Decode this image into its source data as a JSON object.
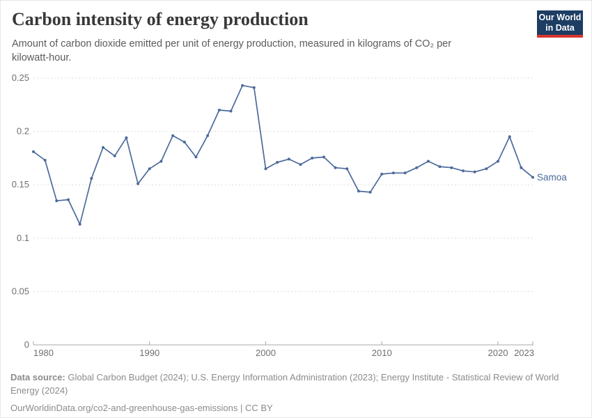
{
  "header": {
    "title": "Carbon intensity of energy production",
    "subtitle": "Amount of carbon dioxide emitted per unit of energy production, measured in kilograms of CO₂ per kilowatt-hour."
  },
  "logo": {
    "line1": "Our World",
    "line2": "in Data"
  },
  "chart_data": {
    "type": "line",
    "title": "Carbon intensity of energy production",
    "xlabel": "",
    "ylabel": "kilograms of CO₂ per kilowatt-hour",
    "ylim": [
      0,
      0.25
    ],
    "yticks": [
      0,
      0.05,
      0.1,
      0.15,
      0.2,
      0.25
    ],
    "ytick_labels": [
      "0",
      "0.05",
      "0.1",
      "0.15",
      "0.2",
      "0.25"
    ],
    "xticks": [
      1980,
      1990,
      2000,
      2010,
      2020,
      2023
    ],
    "xtick_labels": [
      "1980",
      "1990",
      "2000",
      "2010",
      "2020",
      "2023"
    ],
    "grid": "horizontal dashed",
    "legend": "series label at right end of line",
    "series": [
      {
        "name": "Samoa",
        "x": [
          1980,
          1981,
          1982,
          1983,
          1984,
          1985,
          1986,
          1987,
          1988,
          1989,
          1990,
          1991,
          1992,
          1993,
          1994,
          1995,
          1996,
          1997,
          1998,
          1999,
          2000,
          2001,
          2002,
          2003,
          2004,
          2005,
          2006,
          2007,
          2008,
          2009,
          2010,
          2011,
          2012,
          2013,
          2014,
          2015,
          2016,
          2017,
          2018,
          2019,
          2020,
          2021,
          2022,
          2023
        ],
        "values": [
          0.181,
          0.173,
          0.135,
          0.136,
          0.113,
          0.156,
          0.185,
          0.177,
          0.194,
          0.151,
          0.165,
          0.172,
          0.196,
          0.19,
          0.176,
          0.196,
          0.22,
          0.219,
          0.243,
          0.241,
          0.165,
          0.171,
          0.174,
          0.169,
          0.175,
          0.176,
          0.166,
          0.165,
          0.144,
          0.143,
          0.16,
          0.161,
          0.161,
          0.166,
          0.172,
          0.167,
          0.166,
          0.163,
          0.162,
          0.165,
          0.172,
          0.195,
          0.166,
          0.157
        ]
      }
    ]
  },
  "footer": {
    "data_source_label": "Data source:",
    "data_source_text": " Global Carbon Budget (2024); U.S. Energy Information Administration (2023); Energy Institute - Statistical Review of World Energy (2024)",
    "link_text": "OurWorldinData.org/co2-and-greenhouse-gas-emissions | CC BY"
  },
  "colors": {
    "line": "#4C6A9C",
    "series_label": "#4C6A9C",
    "logo_bg": "#1d3d63",
    "logo_stripe": "#d8352e",
    "grid": "#dddddd",
    "axis": "#a8a8a8",
    "tick_label": "#6f6f6f",
    "title_text": "#383838",
    "subtitle_text": "#5b5b5b",
    "footer_text": "#8b8b8b"
  }
}
